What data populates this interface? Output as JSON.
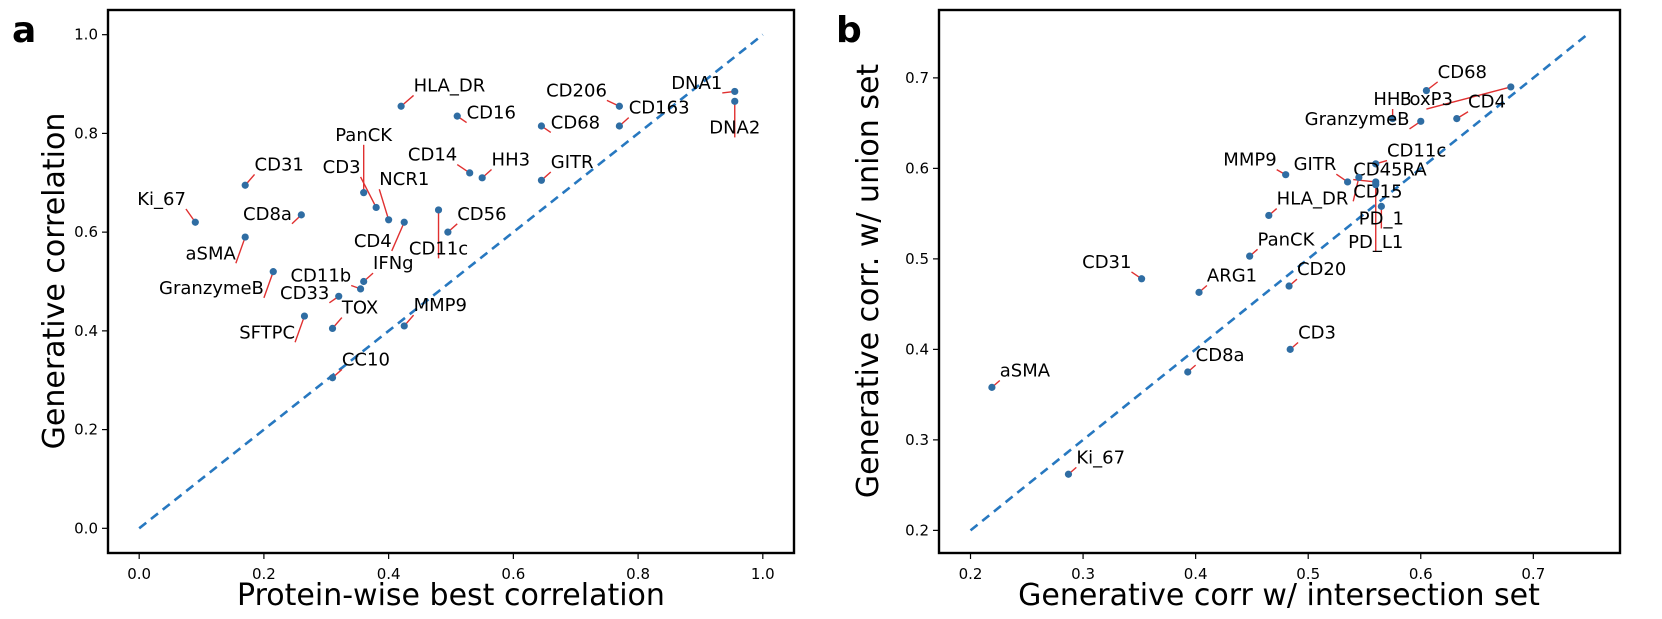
{
  "colors": {
    "point": "#2f6da3",
    "leader": "#e03030",
    "reference": "#2778c0",
    "axis": "#000000"
  },
  "chart_data": [
    {
      "type": "scatter",
      "panel": "a",
      "xlabel": "Protein-wise best correlation",
      "ylabel": "Generative correlation",
      "xlim": [
        -0.05,
        1.05
      ],
      "ylim": [
        -0.05,
        1.05
      ],
      "xticks": [
        0.0,
        0.2,
        0.4,
        0.6,
        0.8,
        1.0
      ],
      "yticks": [
        0.0,
        0.2,
        0.4,
        0.6,
        0.8,
        1.0
      ],
      "xtick_labels": [
        "0.0",
        "0.2",
        "0.4",
        "0.6",
        "0.8",
        "1.0"
      ],
      "ytick_labels": [
        "0.0",
        "0.2",
        "0.4",
        "0.6",
        "0.8",
        "1.0"
      ],
      "reference_line": {
        "x": [
          0.0,
          1.0
        ],
        "y": [
          0.0,
          1.0
        ]
      },
      "points": [
        {
          "name": "HLA_DR",
          "x": 0.42,
          "y": 0.855,
          "lx": 0.44,
          "ly": 0.885,
          "anchor": "start"
        },
        {
          "name": "CD16",
          "x": 0.51,
          "y": 0.835,
          "lx": 0.525,
          "ly": 0.83,
          "anchor": "start"
        },
        {
          "name": "CD206",
          "x": 0.77,
          "y": 0.855,
          "lx": 0.75,
          "ly": 0.875,
          "anchor": "end"
        },
        {
          "name": "DNA1",
          "x": 0.955,
          "y": 0.885,
          "lx": 0.935,
          "ly": 0.89,
          "anchor": "end"
        },
        {
          "name": "DNA2",
          "x": 0.955,
          "y": 0.865,
          "lx": 0.955,
          "ly": 0.8,
          "anchor": "middle"
        },
        {
          "name": "CD68",
          "x": 0.645,
          "y": 0.815,
          "lx": 0.66,
          "ly": 0.81,
          "anchor": "start"
        },
        {
          "name": "CD163",
          "x": 0.77,
          "y": 0.815,
          "lx": 0.785,
          "ly": 0.84,
          "anchor": "start"
        },
        {
          "name": "PanCK",
          "x": 0.36,
          "y": 0.68,
          "lx": 0.36,
          "ly": 0.785,
          "anchor": "middle"
        },
        {
          "name": "CD14",
          "x": 0.53,
          "y": 0.72,
          "lx": 0.51,
          "ly": 0.745,
          "anchor": "end"
        },
        {
          "name": "HH3",
          "x": 0.55,
          "y": 0.71,
          "lx": 0.565,
          "ly": 0.735,
          "anchor": "start"
        },
        {
          "name": "GITR",
          "x": 0.645,
          "y": 0.705,
          "lx": 0.66,
          "ly": 0.73,
          "anchor": "start"
        },
        {
          "name": "CD31",
          "x": 0.17,
          "y": 0.695,
          "lx": 0.185,
          "ly": 0.725,
          "anchor": "start"
        },
        {
          "name": "CD3",
          "x": 0.38,
          "y": 0.65,
          "lx": 0.355,
          "ly": 0.72,
          "anchor": "end"
        },
        {
          "name": "NCR1",
          "x": 0.4,
          "y": 0.625,
          "lx": 0.385,
          "ly": 0.695,
          "anchor": "start"
        },
        {
          "name": "Ki_67",
          "x": 0.09,
          "y": 0.62,
          "lx": 0.075,
          "ly": 0.655,
          "anchor": "end"
        },
        {
          "name": "CD8a",
          "x": 0.26,
          "y": 0.635,
          "lx": 0.245,
          "ly": 0.625,
          "anchor": "end"
        },
        {
          "name": "CD56",
          "x": 0.495,
          "y": 0.6,
          "lx": 0.51,
          "ly": 0.625,
          "anchor": "start"
        },
        {
          "name": "CD4",
          "x": 0.425,
          "y": 0.62,
          "lx": 0.405,
          "ly": 0.57,
          "anchor": "end"
        },
        {
          "name": "CD11c",
          "x": 0.48,
          "y": 0.645,
          "lx": 0.48,
          "ly": 0.555,
          "anchor": "middle"
        },
        {
          "name": "aSMA",
          "x": 0.17,
          "y": 0.59,
          "lx": 0.155,
          "ly": 0.545,
          "anchor": "end"
        },
        {
          "name": "IFNg",
          "x": 0.36,
          "y": 0.5,
          "lx": 0.375,
          "ly": 0.525,
          "anchor": "start"
        },
        {
          "name": "CD11b",
          "x": 0.355,
          "y": 0.485,
          "lx": 0.34,
          "ly": 0.5,
          "anchor": "end"
        },
        {
          "name": "GranzymeB",
          "x": 0.215,
          "y": 0.52,
          "lx": 0.2,
          "ly": 0.475,
          "anchor": "end"
        },
        {
          "name": "CD33",
          "x": 0.32,
          "y": 0.47,
          "lx": 0.305,
          "ly": 0.465,
          "anchor": "end"
        },
        {
          "name": "TOX",
          "x": 0.31,
          "y": 0.405,
          "lx": 0.325,
          "ly": 0.435,
          "anchor": "start"
        },
        {
          "name": "MMP9",
          "x": 0.425,
          "y": 0.41,
          "lx": 0.44,
          "ly": 0.44,
          "anchor": "start"
        },
        {
          "name": "SFTPC",
          "x": 0.265,
          "y": 0.43,
          "lx": 0.25,
          "ly": 0.385,
          "anchor": "end"
        },
        {
          "name": "CC10",
          "x": 0.31,
          "y": 0.305,
          "lx": 0.325,
          "ly": 0.33,
          "anchor": "start"
        }
      ]
    },
    {
      "type": "scatter",
      "panel": "b",
      "xlabel": "Generative corr w/ intersection set",
      "ylabel": "Generative corr. w/ union set",
      "xlim": [
        0.172,
        0.777
      ],
      "ylim": [
        0.175,
        0.775
      ],
      "xticks": [
        0.2,
        0.3,
        0.4,
        0.5,
        0.6,
        0.7
      ],
      "yticks": [
        0.2,
        0.3,
        0.4,
        0.5,
        0.6,
        0.7
      ],
      "xtick_labels": [
        "0.2",
        "0.3",
        "0.4",
        "0.5",
        "0.6",
        "0.7"
      ],
      "ytick_labels": [
        "0.2",
        "0.3",
        "0.4",
        "0.5",
        "0.6",
        "0.7"
      ],
      "reference_line": {
        "x": [
          0.2,
          0.75
        ],
        "y": [
          0.2,
          0.75
        ]
      },
      "points": [
        {
          "name": "CD68",
          "x": 0.605,
          "y": 0.686,
          "lx": 0.615,
          "ly": 0.7,
          "anchor": "start"
        },
        {
          "name": "FoxP3",
          "x": 0.68,
          "y": 0.69,
          "lx": 0.605,
          "ly": 0.67,
          "anchor": "middle"
        },
        {
          "name": "HH3",
          "x": 0.575,
          "y": 0.655,
          "lx": 0.575,
          "ly": 0.67,
          "anchor": "middle"
        },
        {
          "name": "CD4",
          "x": 0.632,
          "y": 0.655,
          "lx": 0.642,
          "ly": 0.667,
          "anchor": "start"
        },
        {
          "name": "GranzymeB",
          "x": 0.6,
          "y": 0.652,
          "lx": 0.59,
          "ly": 0.648,
          "anchor": "end"
        },
        {
          "name": "CD11c",
          "x": 0.56,
          "y": 0.605,
          "lx": 0.57,
          "ly": 0.613,
          "anchor": "start"
        },
        {
          "name": "MMP9",
          "x": 0.48,
          "y": 0.593,
          "lx": 0.472,
          "ly": 0.603,
          "anchor": "end"
        },
        {
          "name": "GITR",
          "x": 0.535,
          "y": 0.585,
          "lx": 0.525,
          "ly": 0.598,
          "anchor": "end"
        },
        {
          "name": "CD45RA",
          "x": 0.56,
          "y": 0.585,
          "lx": 0.54,
          "ly": 0.592,
          "anchor": "start"
        },
        {
          "name": "CD15",
          "x": 0.545,
          "y": 0.59,
          "lx": 0.54,
          "ly": 0.568,
          "anchor": "start"
        },
        {
          "name": "PD_1",
          "x": 0.565,
          "y": 0.558,
          "lx": 0.565,
          "ly": 0.538,
          "anchor": "middle"
        },
        {
          "name": "PD_L1",
          "x": 0.56,
          "y": 0.582,
          "lx": 0.56,
          "ly": 0.512,
          "anchor": "middle"
        },
        {
          "name": "HLA_DR",
          "x": 0.465,
          "y": 0.548,
          "lx": 0.472,
          "ly": 0.56,
          "anchor": "start"
        },
        {
          "name": "PanCK",
          "x": 0.448,
          "y": 0.503,
          "lx": 0.455,
          "ly": 0.515,
          "anchor": "start"
        },
        {
          "name": "CD31",
          "x": 0.352,
          "y": 0.478,
          "lx": 0.343,
          "ly": 0.49,
          "anchor": "end"
        },
        {
          "name": "ARG1",
          "x": 0.403,
          "y": 0.463,
          "lx": 0.41,
          "ly": 0.475,
          "anchor": "start"
        },
        {
          "name": "CD20",
          "x": 0.483,
          "y": 0.47,
          "lx": 0.49,
          "ly": 0.482,
          "anchor": "start"
        },
        {
          "name": "CD3",
          "x": 0.484,
          "y": 0.4,
          "lx": 0.491,
          "ly": 0.412,
          "anchor": "start"
        },
        {
          "name": "CD8a",
          "x": 0.393,
          "y": 0.375,
          "lx": 0.4,
          "ly": 0.387,
          "anchor": "start"
        },
        {
          "name": "aSMA",
          "x": 0.219,
          "y": 0.358,
          "lx": 0.226,
          "ly": 0.37,
          "anchor": "start"
        },
        {
          "name": "Ki_67",
          "x": 0.287,
          "y": 0.262,
          "lx": 0.294,
          "ly": 0.274,
          "anchor": "start"
        }
      ]
    }
  ]
}
